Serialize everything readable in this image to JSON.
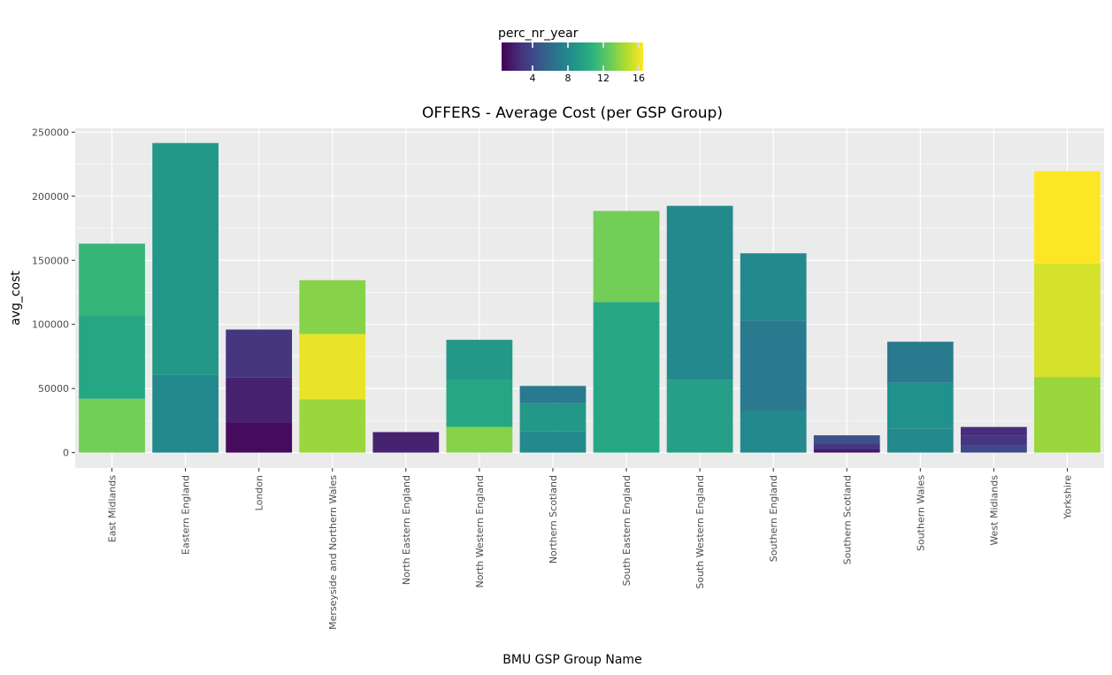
{
  "chart_data": {
    "type": "bar",
    "stacked": true,
    "title": "OFFERS - Average Cost (per GSP Group)",
    "xlabel": "BMU GSP Group Name",
    "ylabel": "avg_cost",
    "ylim": [
      -12000,
      253000
    ],
    "yticks": [
      0,
      50000,
      100000,
      150000,
      200000,
      250000
    ],
    "grid": true,
    "legend": {
      "title": "perc_nr_year",
      "placement": "top",
      "type": "colorbar",
      "range": [
        0.5,
        16.5
      ],
      "ticks": [
        4,
        8,
        12,
        16
      ],
      "palette": "viridis"
    },
    "categories": [
      "East Midlands",
      "Eastern England",
      "London",
      "Merseyside and Northern Wales",
      "North Eastern England",
      "North Western England",
      "Northern Scotland",
      "South Eastern England",
      "South Western England",
      "Southern England",
      "Southern Scotland",
      "Southern Wales",
      "West Midlands",
      "Yorkshire"
    ],
    "stacks": [
      [
        {
          "value": 42000,
          "perc": 13
        },
        {
          "value": 65000,
          "perc": 10
        },
        {
          "value": 56000,
          "perc": 11
        }
      ],
      [
        {
          "value": 60500,
          "perc": 8
        },
        {
          "value": 181000,
          "perc": 9
        }
      ],
      [
        {
          "value": 23500,
          "perc": 1
        },
        {
          "value": 35000,
          "perc": 2
        },
        {
          "value": 37500,
          "perc": 3
        }
      ],
      [
        {
          "value": 41500,
          "perc": 14
        },
        {
          "value": 51000,
          "perc": 16
        },
        {
          "value": 42000,
          "perc": 13.5
        }
      ],
      [
        {
          "value": 16000,
          "perc": 2
        }
      ],
      [
        {
          "value": 20000,
          "perc": 13.5
        },
        {
          "value": 37000,
          "perc": 10
        },
        {
          "value": 31000,
          "perc": 9
        }
      ],
      [
        {
          "value": 16500,
          "perc": 8
        },
        {
          "value": 22000,
          "perc": 9
        },
        {
          "value": 13500,
          "perc": 7
        }
      ],
      [
        {
          "value": 117500,
          "perc": 10
        },
        {
          "value": 71000,
          "perc": 13
        }
      ],
      [
        {
          "value": 56500,
          "perc": 9.5
        },
        {
          "value": 136000,
          "perc": 8
        }
      ],
      [
        {
          "value": 32500,
          "perc": 8
        },
        {
          "value": 70500,
          "perc": 7
        },
        {
          "value": 52500,
          "perc": 8
        }
      ],
      [
        {
          "value": 2500,
          "perc": 1.5
        },
        {
          "value": 4500,
          "perc": 3
        },
        {
          "value": 6500,
          "perc": 4.5
        }
      ],
      [
        {
          "value": 18500,
          "perc": 8
        },
        {
          "value": 36000,
          "perc": 8.5
        },
        {
          "value": 32000,
          "perc": 7
        }
      ],
      [
        {
          "value": 5500,
          "perc": 4
        },
        {
          "value": 7500,
          "perc": 3
        },
        {
          "value": 7000,
          "perc": 2.5
        }
      ],
      [
        {
          "value": 59000,
          "perc": 14
        },
        {
          "value": 88500,
          "perc": 15.5
        },
        {
          "value": 72000,
          "perc": 16.5
        }
      ]
    ]
  }
}
